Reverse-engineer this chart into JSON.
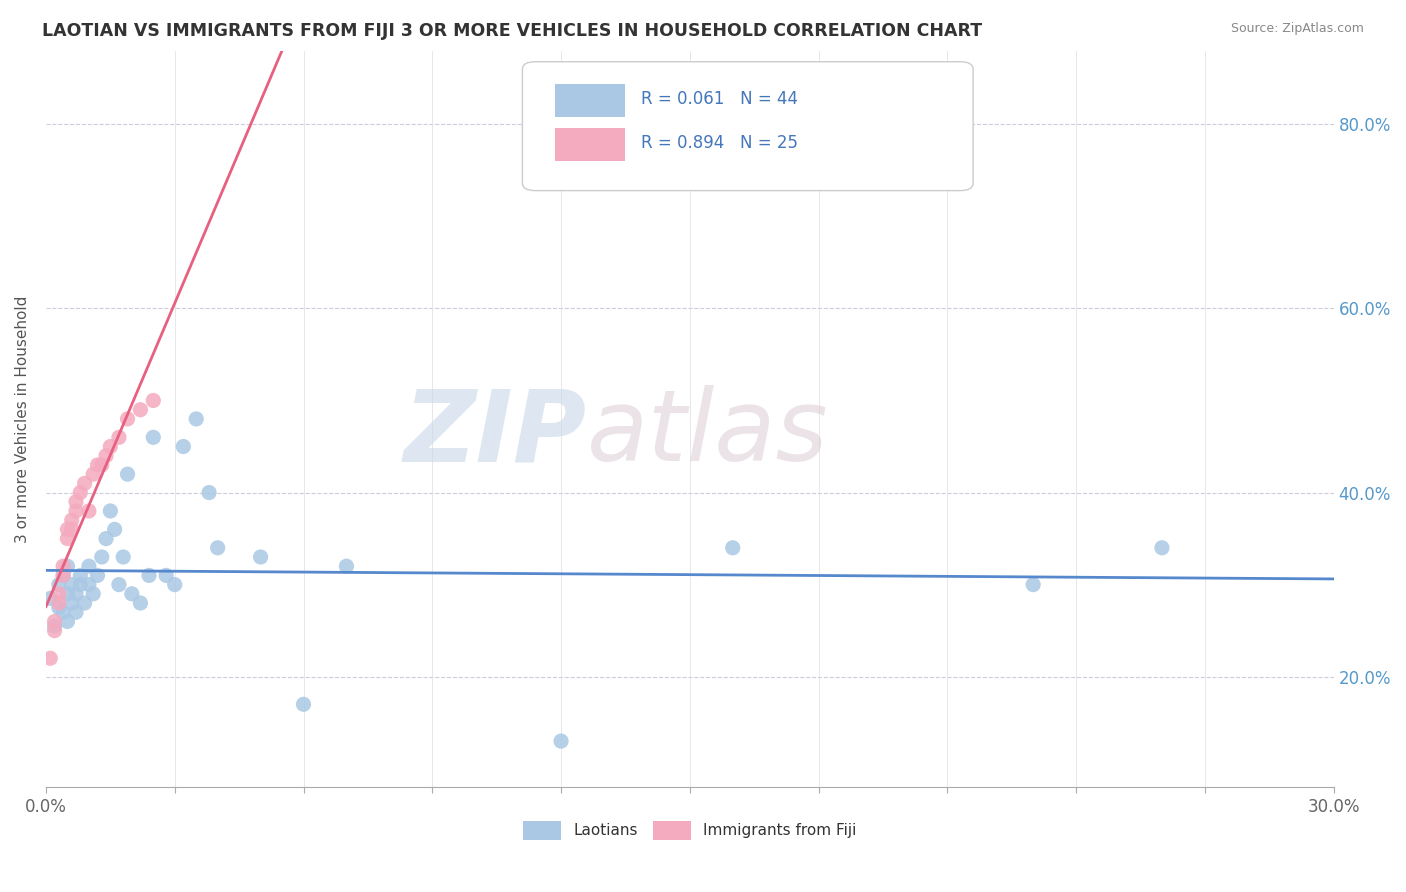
{
  "title": "LAOTIAN VS IMMIGRANTS FROM FIJI 3 OR MORE VEHICLES IN HOUSEHOLD CORRELATION CHART",
  "source": "Source: ZipAtlas.com",
  "ylabel": "3 or more Vehicles in Household",
  "xmin": 0.0,
  "xmax": 0.3,
  "ymin": 0.08,
  "ymax": 0.88,
  "yticks": [
    0.2,
    0.4,
    0.6,
    0.8
  ],
  "ytick_labels": [
    "20.0%",
    "40.0%",
    "60.0%",
    "80.0%"
  ],
  "laotian_color": "#aac8e4",
  "fiji_color": "#f4aabf",
  "laotian_line_color": "#5588cc",
  "fiji_line_color": "#e86080",
  "legend_label_1": "R = 0.061   N = 44",
  "legend_label_2": "R = 0.894   N = 25",
  "legend_bottom_1": "Laotians",
  "legend_bottom_2": "Immigrants from Fiji",
  "watermark_zip": "ZIP",
  "watermark_atlas": "atlas",
  "laotian_x": [
    0.001,
    0.002,
    0.003,
    0.003,
    0.004,
    0.004,
    0.005,
    0.005,
    0.005,
    0.006,
    0.006,
    0.007,
    0.007,
    0.008,
    0.008,
    0.009,
    0.01,
    0.01,
    0.011,
    0.012,
    0.013,
    0.014,
    0.015,
    0.016,
    0.017,
    0.018,
    0.019,
    0.02,
    0.022,
    0.024,
    0.025,
    0.028,
    0.03,
    0.032,
    0.035,
    0.038,
    0.04,
    0.05,
    0.06,
    0.07,
    0.12,
    0.16,
    0.23,
    0.26
  ],
  "laotian_y": [
    0.285,
    0.255,
    0.3,
    0.275,
    0.27,
    0.31,
    0.29,
    0.32,
    0.26,
    0.3,
    0.28,
    0.29,
    0.27,
    0.3,
    0.31,
    0.28,
    0.32,
    0.3,
    0.29,
    0.31,
    0.33,
    0.35,
    0.38,
    0.36,
    0.3,
    0.33,
    0.42,
    0.29,
    0.28,
    0.31,
    0.46,
    0.31,
    0.3,
    0.45,
    0.48,
    0.4,
    0.34,
    0.33,
    0.17,
    0.32,
    0.13,
    0.34,
    0.3,
    0.34
  ],
  "fiji_x": [
    0.001,
    0.002,
    0.002,
    0.003,
    0.003,
    0.004,
    0.004,
    0.005,
    0.005,
    0.006,
    0.006,
    0.007,
    0.007,
    0.008,
    0.009,
    0.01,
    0.011,
    0.012,
    0.013,
    0.014,
    0.015,
    0.017,
    0.019,
    0.022,
    0.025
  ],
  "fiji_y": [
    0.22,
    0.26,
    0.25,
    0.29,
    0.28,
    0.32,
    0.31,
    0.35,
    0.36,
    0.37,
    0.36,
    0.38,
    0.39,
    0.4,
    0.41,
    0.38,
    0.42,
    0.43,
    0.43,
    0.44,
    0.45,
    0.46,
    0.48,
    0.49,
    0.5
  ]
}
